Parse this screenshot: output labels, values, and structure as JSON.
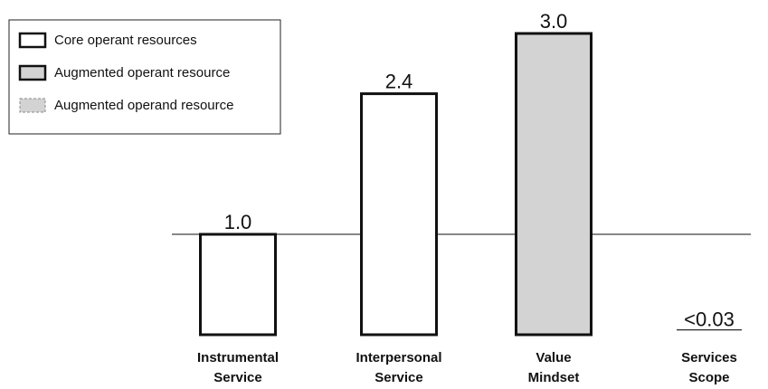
{
  "chart_data": {
    "type": "bar",
    "categories": [
      [
        "Instrumental",
        "Service"
      ],
      [
        "Interpersonal",
        "Service"
      ],
      [
        "Value",
        "Mindset"
      ],
      [
        "Services",
        "Scope"
      ]
    ],
    "values": [
      1.0,
      2.4,
      3.0,
      0.03
    ],
    "value_labels": [
      "1.0",
      "2.4",
      "3.0",
      "<0.03"
    ],
    "colors": [
      "#ffffff",
      "#ffffff",
      "#d3d3d3",
      "#d3d3d3"
    ],
    "dashed": [
      false,
      false,
      false,
      true
    ],
    "reference_line": 1.0,
    "ylim": [
      0,
      3.0
    ],
    "legend": [
      {
        "name": "Core operant resources",
        "color": "#ffffff",
        "dashed": false
      },
      {
        "name": "Augmented operant resource",
        "color": "#d3d3d3",
        "dashed": false
      },
      {
        "name": "Augmented operand resource",
        "color": "#d3d3d3",
        "dashed": true
      }
    ]
  }
}
